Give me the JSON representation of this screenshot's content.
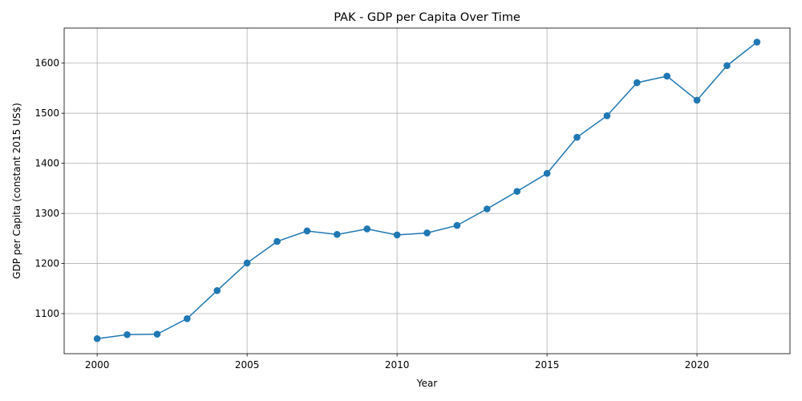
{
  "chart_data": {
    "type": "line",
    "title": "PAK - GDP per Capita Over Time",
    "xlabel": "Year",
    "ylabel": "GDP per Capita (constant 2015 US$)",
    "x_ticks": [
      2000,
      2005,
      2010,
      2015,
      2020
    ],
    "y_ticks": [
      1100,
      1200,
      1300,
      1400,
      1500,
      1600
    ],
    "xlim": [
      1998.9,
      2023.1
    ],
    "ylim": [
      1020,
      1670
    ],
    "grid": true,
    "color": "#1f77b4",
    "marker": "circle",
    "x": [
      2000,
      2001,
      2002,
      2003,
      2004,
      2005,
      2006,
      2007,
      2008,
      2009,
      2010,
      2011,
      2012,
      2013,
      2014,
      2015,
      2016,
      2017,
      2018,
      2019,
      2020,
      2021,
      2022
    ],
    "values": [
      1050,
      1058,
      1059,
      1090,
      1146,
      1201,
      1244,
      1265,
      1258,
      1269,
      1257,
      1261,
      1276,
      1309,
      1344,
      1380,
      1452,
      1495,
      1561,
      1574,
      1526,
      1595,
      1642
    ]
  }
}
